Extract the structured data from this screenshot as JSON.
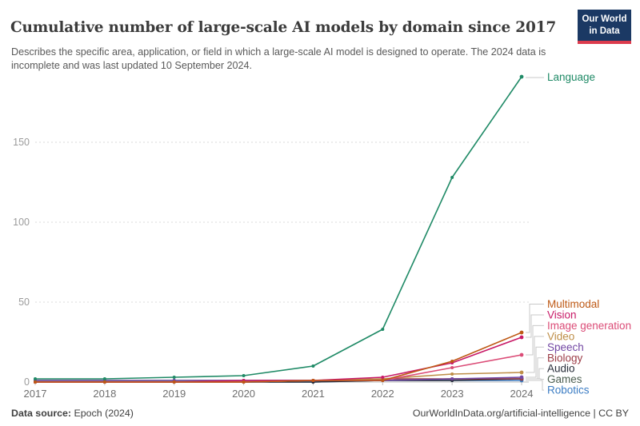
{
  "header": {
    "title": "Cumulative number of large-scale AI models by domain since 2017",
    "subtitle": "Describes the specific area, application, or field in which a large-scale AI model is designed to operate. The 2024 data is incomplete and was last updated 10 September 2024.",
    "logo": {
      "line1": "Our World",
      "line2": "in Data",
      "bg_color": "#1B3964",
      "accent_color": "#DC3B4D"
    }
  },
  "footer": {
    "source_label": "Data source:",
    "source_value": " Epoch (2024)",
    "right_text": "OurWorldInData.org/artificial-intelligence | CC BY"
  },
  "chart_data": {
    "type": "line",
    "title": "Cumulative number of large-scale AI models by domain since 2017",
    "xlabel": "",
    "ylabel": "",
    "x": [
      2017,
      2018,
      2019,
      2020,
      2021,
      2022,
      2023,
      2024
    ],
    "yticks": [
      0,
      50,
      100,
      150
    ],
    "ylim": [
      0,
      200
    ],
    "grid": "horizontal-dashed",
    "legend_position": "right-of-line-ends",
    "series": [
      {
        "name": "Language",
        "color": "#1F8A66",
        "values": [
          2,
          2,
          3,
          4,
          10,
          33,
          128,
          191
        ]
      },
      {
        "name": "Multimodal",
        "color": "#BE5915",
        "values": [
          0,
          0,
          0,
          0,
          1,
          1,
          13,
          31
        ]
      },
      {
        "name": "Vision",
        "color": "#C81A67",
        "values": [
          0,
          0,
          0,
          1,
          1,
          3,
          12,
          28
        ]
      },
      {
        "name": "Image generation",
        "color": "#DB4C77",
        "values": [
          0,
          0,
          0,
          0,
          1,
          1,
          9,
          17
        ]
      },
      {
        "name": "Video",
        "color": "#BE8E48",
        "values": [
          0,
          0,
          0,
          0,
          1,
          2,
          5,
          6
        ]
      },
      {
        "name": "Speech",
        "color": "#7247A3",
        "values": [
          1,
          1,
          1,
          1,
          1,
          1,
          2,
          3
        ]
      },
      {
        "name": "Biology",
        "color": "#9C3D47",
        "values": [
          0,
          0,
          0,
          0,
          1,
          2,
          2,
          2
        ]
      },
      {
        "name": "Audio",
        "color": "#272C38",
        "values": [
          0,
          0,
          0,
          0,
          0,
          1,
          1,
          2
        ]
      },
      {
        "name": "Games",
        "color": "#4C5E50",
        "values": [
          1,
          1,
          1,
          1,
          1,
          1,
          2,
          2
        ]
      },
      {
        "name": "Robotics",
        "color": "#3C7DC4",
        "values": [
          0,
          0,
          0,
          0,
          0,
          1,
          1,
          1
        ]
      }
    ]
  }
}
